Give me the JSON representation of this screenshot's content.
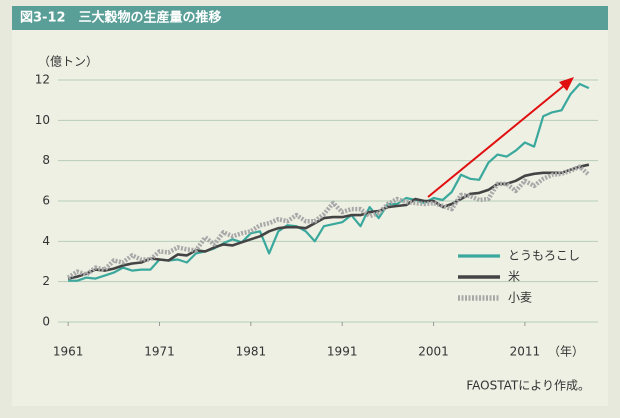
{
  "chart_data": {
    "type": "line",
    "title": "図3-12　三大穀物の生産量の推移",
    "y_label": "（億トン）",
    "x_label": "（年）",
    "source": "FAOSTATにより作成。",
    "x": [
      1961,
      1962,
      1963,
      1964,
      1965,
      1966,
      1967,
      1968,
      1969,
      1970,
      1971,
      1972,
      1973,
      1974,
      1975,
      1976,
      1977,
      1978,
      1979,
      1980,
      1981,
      1982,
      1983,
      1984,
      1985,
      1986,
      1987,
      1988,
      1989,
      1990,
      1991,
      1992,
      1993,
      1994,
      1995,
      1996,
      1997,
      1998,
      1999,
      2000,
      2001,
      2002,
      2003,
      2004,
      2005,
      2006,
      2007,
      2008,
      2009,
      2010,
      2011,
      2012,
      2013,
      2014,
      2015,
      2016,
      2017,
      2018
    ],
    "series": [
      {
        "name": "とうもろこし",
        "color": "#3aa89c",
        "values": [
          2.05,
          2.05,
          2.2,
          2.15,
          2.3,
          2.45,
          2.7,
          2.55,
          2.6,
          2.6,
          3.1,
          3.05,
          3.1,
          2.95,
          3.4,
          3.5,
          3.65,
          3.9,
          4.1,
          3.95,
          4.4,
          4.5,
          3.4,
          4.5,
          4.8,
          4.75,
          4.5,
          4.0,
          4.75,
          4.85,
          4.95,
          5.3,
          4.75,
          5.7,
          5.15,
          5.85,
          5.85,
          6.15,
          6.05,
          5.9,
          6.15,
          6.05,
          6.45,
          7.3,
          7.1,
          7.05,
          7.9,
          8.3,
          8.2,
          8.5,
          8.9,
          8.7,
          10.2,
          10.4,
          10.5,
          11.3,
          11.8,
          11.6
        ]
      },
      {
        "name": "米",
        "color": "#444444",
        "values": [
          2.15,
          2.25,
          2.4,
          2.6,
          2.55,
          2.65,
          2.8,
          2.9,
          2.95,
          3.15,
          3.1,
          3.05,
          3.35,
          3.3,
          3.55,
          3.5,
          3.7,
          3.85,
          3.8,
          3.95,
          4.1,
          4.25,
          4.5,
          4.65,
          4.7,
          4.7,
          4.65,
          4.9,
          5.15,
          5.2,
          5.2,
          5.3,
          5.3,
          5.45,
          5.5,
          5.7,
          5.75,
          5.8,
          6.1,
          6.0,
          6.0,
          5.7,
          5.85,
          6.1,
          6.35,
          6.4,
          6.55,
          6.85,
          6.85,
          7.0,
          7.25,
          7.35,
          7.4,
          7.4,
          7.4,
          7.55,
          7.7,
          7.8
        ]
      },
      {
        "name": "小麦",
        "color": "#a8a8a8",
        "values": [
          2.2,
          2.5,
          2.35,
          2.7,
          2.6,
          3.05,
          2.95,
          3.3,
          3.1,
          3.1,
          3.5,
          3.45,
          3.7,
          3.6,
          3.55,
          4.2,
          3.85,
          4.45,
          4.25,
          4.4,
          4.5,
          4.8,
          4.9,
          5.1,
          5.0,
          5.3,
          5.0,
          5.0,
          5.35,
          5.9,
          5.45,
          5.6,
          5.6,
          5.25,
          5.4,
          5.85,
          6.1,
          5.95,
          5.9,
          5.85,
          5.9,
          5.75,
          5.6,
          6.3,
          6.25,
          6.05,
          6.1,
          6.85,
          6.85,
          6.5,
          7.0,
          6.75,
          7.1,
          7.3,
          7.35,
          7.5,
          7.7,
          7.3
        ]
      }
    ],
    "xlim": [
      1960,
      2019
    ],
    "xticks": [
      1961,
      1971,
      1981,
      1991,
      2001,
      2011
    ],
    "ylim": [
      0,
      12
    ],
    "yticks": [
      0,
      2,
      4,
      6,
      8,
      10,
      12
    ],
    "grid": true,
    "legend": "lower right"
  }
}
